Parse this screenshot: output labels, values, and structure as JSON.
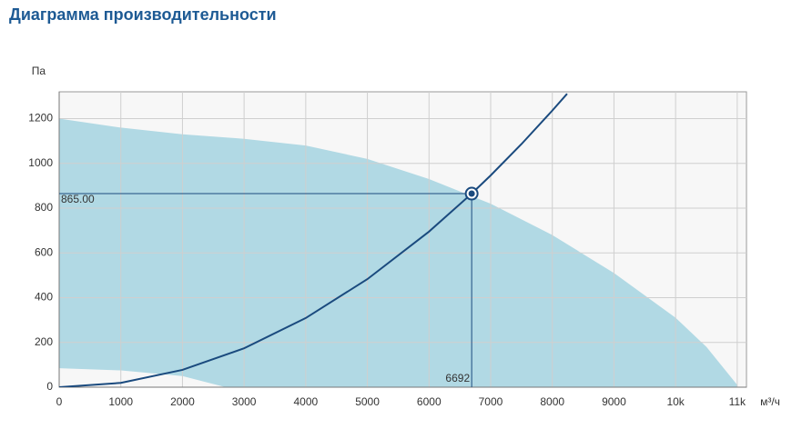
{
  "chart_data": {
    "type": "area",
    "title": "Диаграмма производительности",
    "y_label": "Па",
    "x_label": "м³/ч",
    "xlim": [
      0,
      11150
    ],
    "ylim": [
      0,
      1320
    ],
    "xticks": [
      0,
      1000,
      2000,
      3000,
      4000,
      5000,
      6000,
      7000,
      8000,
      9000,
      {
        "value": 10000,
        "label": "10k"
      },
      {
        "value": 11000,
        "label": "11k"
      }
    ],
    "yticks": [
      0,
      200,
      400,
      600,
      800,
      1000,
      1200
    ],
    "grid": true,
    "series": [
      {
        "color": "#b1d9e4",
        "x": [
          0,
          1000,
          2000,
          3000,
          4000,
          5000,
          6000,
          7000,
          8000,
          9000,
          10000,
          10500,
          11000
        ],
        "values": [
          1200,
          1160,
          1130,
          1110,
          1080,
          1020,
          930,
          820,
          680,
          510,
          310,
          180,
          10
        ]
      },
      {
        "color": "#f7f7f7",
        "x": [
          0,
          1000,
          2000,
          2700
        ],
        "values": [
          85,
          75,
          50,
          0
        ]
      }
    ],
    "system_curve": {
      "color": "#1a4a7e",
      "x": [
        0,
        1000,
        2000,
        3000,
        4000,
        5000,
        6000,
        6692,
        7000,
        7500,
        8000,
        8240
      ],
      "values": [
        0,
        19.3,
        77.3,
        173.8,
        309,
        482.9,
        695.3,
        865,
        946.4,
        1086.5,
        1236.2,
        1311
      ]
    },
    "point": {
      "x": 6692,
      "y": 865,
      "y_label": "865.00",
      "color": "#1a4a7e"
    }
  }
}
